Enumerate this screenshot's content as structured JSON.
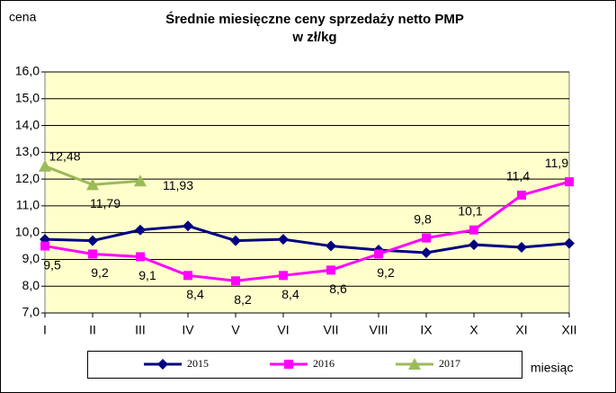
{
  "chart_data": {
    "type": "line",
    "title_lines": [
      "Średnie miesięczne ceny sprzedaży netto PMP",
      "w zł/kg"
    ],
    "y_label": "cena",
    "x_label": "miesiąc",
    "categories": [
      "I",
      "II",
      "III",
      "IV",
      "V",
      "VI",
      "VII",
      "VIII",
      "IX",
      "X",
      "XI",
      "XII"
    ],
    "ylim": [
      7,
      16
    ],
    "yticks": [
      {
        "value": 7,
        "label": "7,0"
      },
      {
        "value": 8,
        "label": "8,0"
      },
      {
        "value": 9,
        "label": "9,0"
      },
      {
        "value": 10,
        "label": "10,0"
      },
      {
        "value": 11,
        "label": "11,0"
      },
      {
        "value": 12,
        "label": "12,0"
      },
      {
        "value": 13,
        "label": "13,0"
      },
      {
        "value": 14,
        "label": "14,0"
      },
      {
        "value": 15,
        "label": "15,0"
      },
      {
        "value": 16,
        "label": "16,0"
      }
    ],
    "grid": true,
    "legend": "bottom",
    "series": [
      {
        "name": "2015",
        "color": "#000080",
        "marker": "diamond",
        "values": [
          9.75,
          9.7,
          10.1,
          10.25,
          9.7,
          9.75,
          9.5,
          9.35,
          9.25,
          9.55,
          9.45,
          9.6
        ]
      },
      {
        "name": "2016",
        "color": "#ff00ff",
        "marker": "square",
        "values": [
          9.5,
          9.2,
          9.1,
          8.4,
          8.2,
          8.4,
          8.6,
          9.2,
          9.8,
          10.1,
          11.4,
          11.9
        ],
        "value_labels": [
          "9,5",
          "9,2",
          "9,1",
          "8,4",
          "8,2",
          "8,4",
          "8,6",
          "9,2",
          "9,8",
          "10,1",
          "11,4",
          "11,9"
        ]
      },
      {
        "name": "2017",
        "color": "#9bbb59",
        "marker": "triangle",
        "values": [
          12.48,
          11.79,
          11.93,
          null,
          null,
          null,
          null,
          null,
          null,
          null,
          null,
          null
        ],
        "value_labels": [
          "12,48",
          "11,79",
          "11,93",
          null,
          null,
          null,
          null,
          null,
          null,
          null,
          null,
          null
        ]
      }
    ]
  }
}
